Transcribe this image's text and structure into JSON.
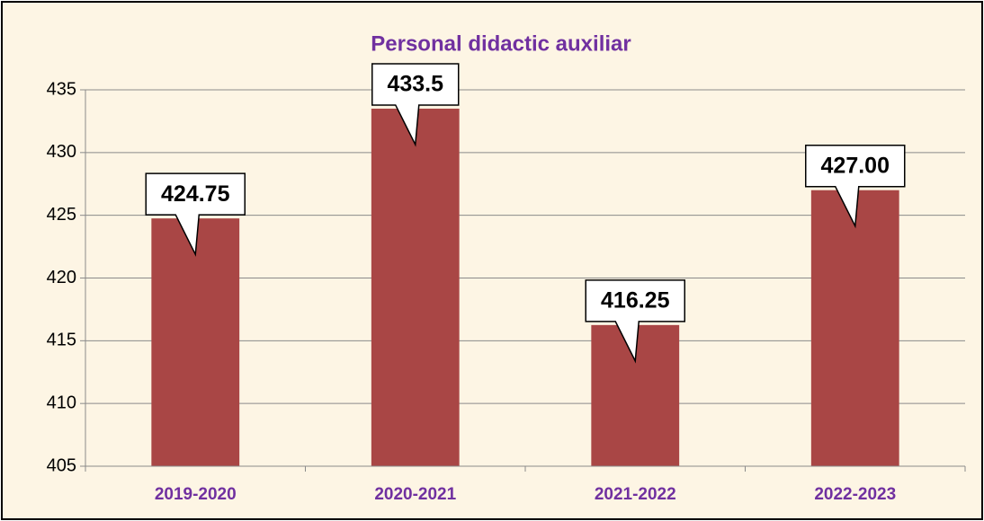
{
  "chart_data": {
    "type": "bar",
    "title": "Personal didactic auxiliar",
    "categories": [
      "2019-2020",
      "2020-2021",
      "2021-2022",
      "2022-2023"
    ],
    "values": [
      424.75,
      433.5,
      416.25,
      427
    ],
    "value_labels": [
      "424.75",
      "433.5",
      "416.25",
      "427.00"
    ],
    "color": "#a94645",
    "ylim": [
      405,
      435
    ],
    "yticks": [
      405,
      410,
      415,
      420,
      425,
      430,
      435
    ],
    "grid": true
  }
}
